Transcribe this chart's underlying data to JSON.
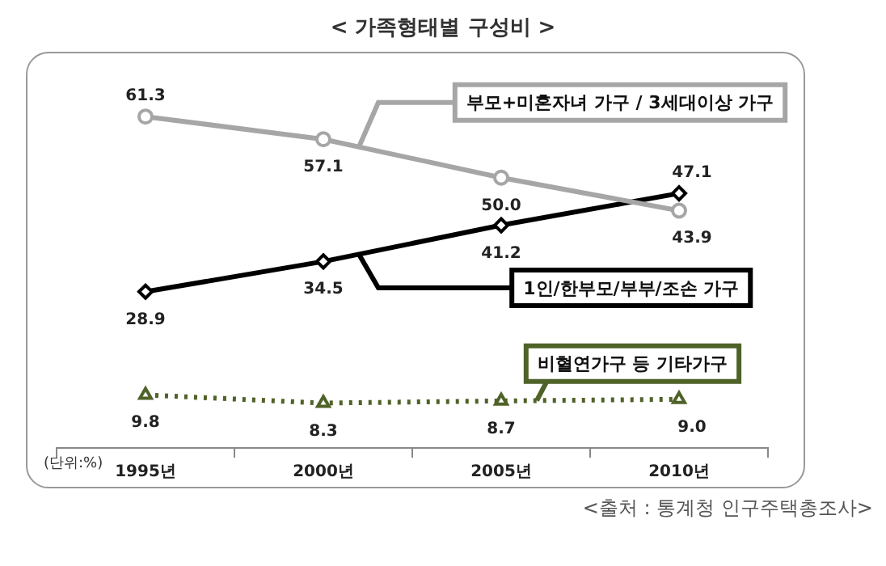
{
  "chart_data": {
    "type": "line",
    "title": "< 가족형태별 구성비 >",
    "categories": [
      "1995년",
      "2000년",
      "2005년",
      "2010년"
    ],
    "series": [
      {
        "name": "부모+미혼자녀 가구 / 3세대이상 가구",
        "color": "#a6a6a6",
        "values": [
          61.3,
          57.1,
          50.0,
          43.9
        ],
        "value_labels": [
          "61.3",
          "57.1",
          "50.0",
          "43.9"
        ],
        "marker": "circle",
        "line_style": "solid"
      },
      {
        "name": "1인/한부모/부부/조손 가구",
        "color": "#000000",
        "values": [
          28.9,
          34.5,
          41.2,
          47.1
        ],
        "value_labels": [
          "28.9",
          "34.5",
          "41.2",
          "47.1"
        ],
        "marker": "diamond",
        "line_style": "solid"
      },
      {
        "name": "비혈연가구 등 기타가구",
        "color": "#4f6228",
        "values": [
          9.8,
          8.3,
          8.7,
          9.0
        ],
        "value_labels": [
          "9.8",
          "8.3",
          "8.7",
          "9.0"
        ],
        "marker": "triangle",
        "line_style": "dotted"
      }
    ],
    "tick_labels": "x",
    "grid": false,
    "legend": false,
    "annotations": [
      "(단위:%)",
      "<출처 : 통계청 인구주택총조사>"
    ]
  }
}
